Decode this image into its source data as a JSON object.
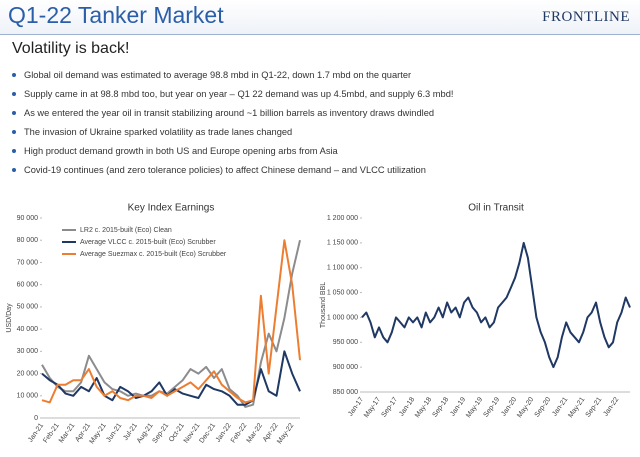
{
  "header": {
    "title": "Q1-22 Tanker Market",
    "logo": "FRONTLINE",
    "subtitle": "Volatility is back!"
  },
  "bullets": [
    "Global oil demand was estimated to average 98.8 mbd in Q1-22, down 1.7 mbd on the quarter",
    "Supply came in at 98.8 mbd too, but year on year – Q1 22 demand was up 4.5mbd, and supply 6.3 mbd!",
    "As we entered the year oil in transit stabilizing around ~1 billion barrels as inventory draws dwindled",
    "The invasion of Ukraine sparked volatility as trade lanes changed",
    "High product demand growth in both US and Europe opening arbs from Asia",
    "Covid-19 continues (and zero tolerance policies) to affect Chinese demand – and VLCC utilization"
  ],
  "chart_data": [
    {
      "type": "line",
      "title": "Key Index Earnings",
      "y_label": "USD/Day",
      "legend": "upper-left",
      "categories": [
        "Jan-21",
        null,
        "Feb-21",
        null,
        "Mar-21",
        null,
        "Apr-21",
        null,
        "May-21",
        null,
        "Jun-21",
        null,
        "Jul-21",
        null,
        "Aug-21",
        null,
        "Sep-21",
        null,
        "Oct-21",
        null,
        "Nov-21",
        null,
        "Dec-21",
        null,
        "Jan-22",
        null,
        "Feb-22",
        null,
        "Mar-22",
        null,
        "Apr-22",
        null,
        "May-22",
        null
      ],
      "series": [
        {
          "name": "LR2 c. 2015-built (Eco) Clean",
          "color": "#8c8c8c",
          "values": [
            24000,
            18000,
            14000,
            12000,
            12000,
            16000,
            28000,
            22000,
            16000,
            13000,
            12000,
            10000,
            11000,
            10000,
            10000,
            12000,
            11000,
            14000,
            17000,
            22000,
            20000,
            23000,
            18000,
            22000,
            13000,
            10000,
            5000,
            6000,
            25000,
            38000,
            30000,
            45000,
            65000,
            80000
          ]
        },
        {
          "name": "Average VLCC c. 2015-built (Eco) Scrubber",
          "color": "#1f3864",
          "values": [
            20000,
            17000,
            15000,
            11000,
            10000,
            14000,
            12000,
            18000,
            10000,
            8000,
            14000,
            12000,
            9000,
            10000,
            12000,
            16000,
            10000,
            13000,
            11000,
            10000,
            9000,
            15000,
            13000,
            12000,
            10000,
            6000,
            6000,
            8000,
            22000,
            12000,
            10000,
            30000,
            20000,
            12000
          ]
        },
        {
          "name": "Average Suezmax c. 2015-built (Eco) Scrubber",
          "color": "#ed7d31",
          "values": [
            8000,
            7000,
            15000,
            15000,
            17000,
            17000,
            22000,
            14000,
            10000,
            12000,
            9000,
            8000,
            10000,
            10000,
            9000,
            12000,
            10000,
            12000,
            14000,
            16000,
            13000,
            17000,
            21000,
            15000,
            12000,
            9000,
            7000,
            8000,
            55000,
            20000,
            50000,
            80000,
            60000,
            26000
          ]
        }
      ],
      "ylim": [
        0,
        90000
      ],
      "yticks": [
        0,
        {
          "value": 10000,
          "label": "10 000"
        },
        {
          "value": 20000,
          "label": "20 000"
        },
        {
          "value": 30000,
          "label": "30 000"
        },
        {
          "value": 40000,
          "label": "40 000"
        },
        {
          "value": 50000,
          "label": "50 000"
        },
        {
          "value": 60000,
          "label": "60 000"
        },
        {
          "value": 70000,
          "label": "70 000"
        },
        {
          "value": 80000,
          "label": "80 000"
        },
        {
          "value": 90000,
          "label": "90 000"
        }
      ]
    },
    {
      "type": "line",
      "title": "Oil in Transit",
      "y_label": "Thousand BBL",
      "categories": [
        "Jan-17",
        null,
        null,
        null,
        "May-17",
        null,
        null,
        null,
        "Sep-17",
        null,
        null,
        null,
        "Jan-18",
        null,
        null,
        null,
        "May-18",
        null,
        null,
        null,
        "Sep-18",
        null,
        null,
        null,
        "Jan-19",
        null,
        null,
        null,
        "May-19",
        null,
        null,
        null,
        "Sep-19",
        null,
        null,
        null,
        "Jan-20",
        null,
        null,
        null,
        "May-20",
        null,
        null,
        null,
        "Sep-20",
        null,
        null,
        null,
        "Jan-21",
        null,
        null,
        null,
        "May-21",
        null,
        null,
        null,
        "Sep-21",
        null,
        null,
        null,
        "Jan-22",
        null,
        null,
        null
      ],
      "series": [
        {
          "name": "Oil in Transit",
          "color": "#1f3864",
          "values": [
            1000000,
            1010000,
            990000,
            960000,
            980000,
            960000,
            950000,
            970000,
            1000000,
            990000,
            980000,
            1000000,
            990000,
            1000000,
            980000,
            1010000,
            990000,
            1000000,
            1020000,
            1000000,
            1030000,
            1010000,
            1020000,
            1000000,
            1030000,
            1040000,
            1020000,
            1010000,
            990000,
            1000000,
            980000,
            990000,
            1020000,
            1030000,
            1040000,
            1060000,
            1080000,
            1110000,
            1150000,
            1120000,
            1060000,
            1000000,
            970000,
            950000,
            920000,
            900000,
            920000,
            960000,
            990000,
            970000,
            960000,
            950000,
            970000,
            1000000,
            1010000,
            1030000,
            990000,
            960000,
            940000,
            950000,
            990000,
            1010000,
            1040000,
            1020000
          ]
        }
      ],
      "ylim": [
        850000,
        1200000
      ],
      "yticks": [
        {
          "value": 850000,
          "label": "850 000"
        },
        {
          "value": 900000,
          "label": "900 000"
        },
        {
          "value": 950000,
          "label": "950 000"
        },
        {
          "value": 1000000,
          "label": "1 000 000"
        },
        {
          "value": 1050000,
          "label": "1 050 000"
        },
        {
          "value": 1100000,
          "label": "1 100 000"
        },
        {
          "value": 1150000,
          "label": "1 150 000"
        },
        {
          "value": 1200000,
          "label": "1 200 000"
        }
      ]
    }
  ]
}
